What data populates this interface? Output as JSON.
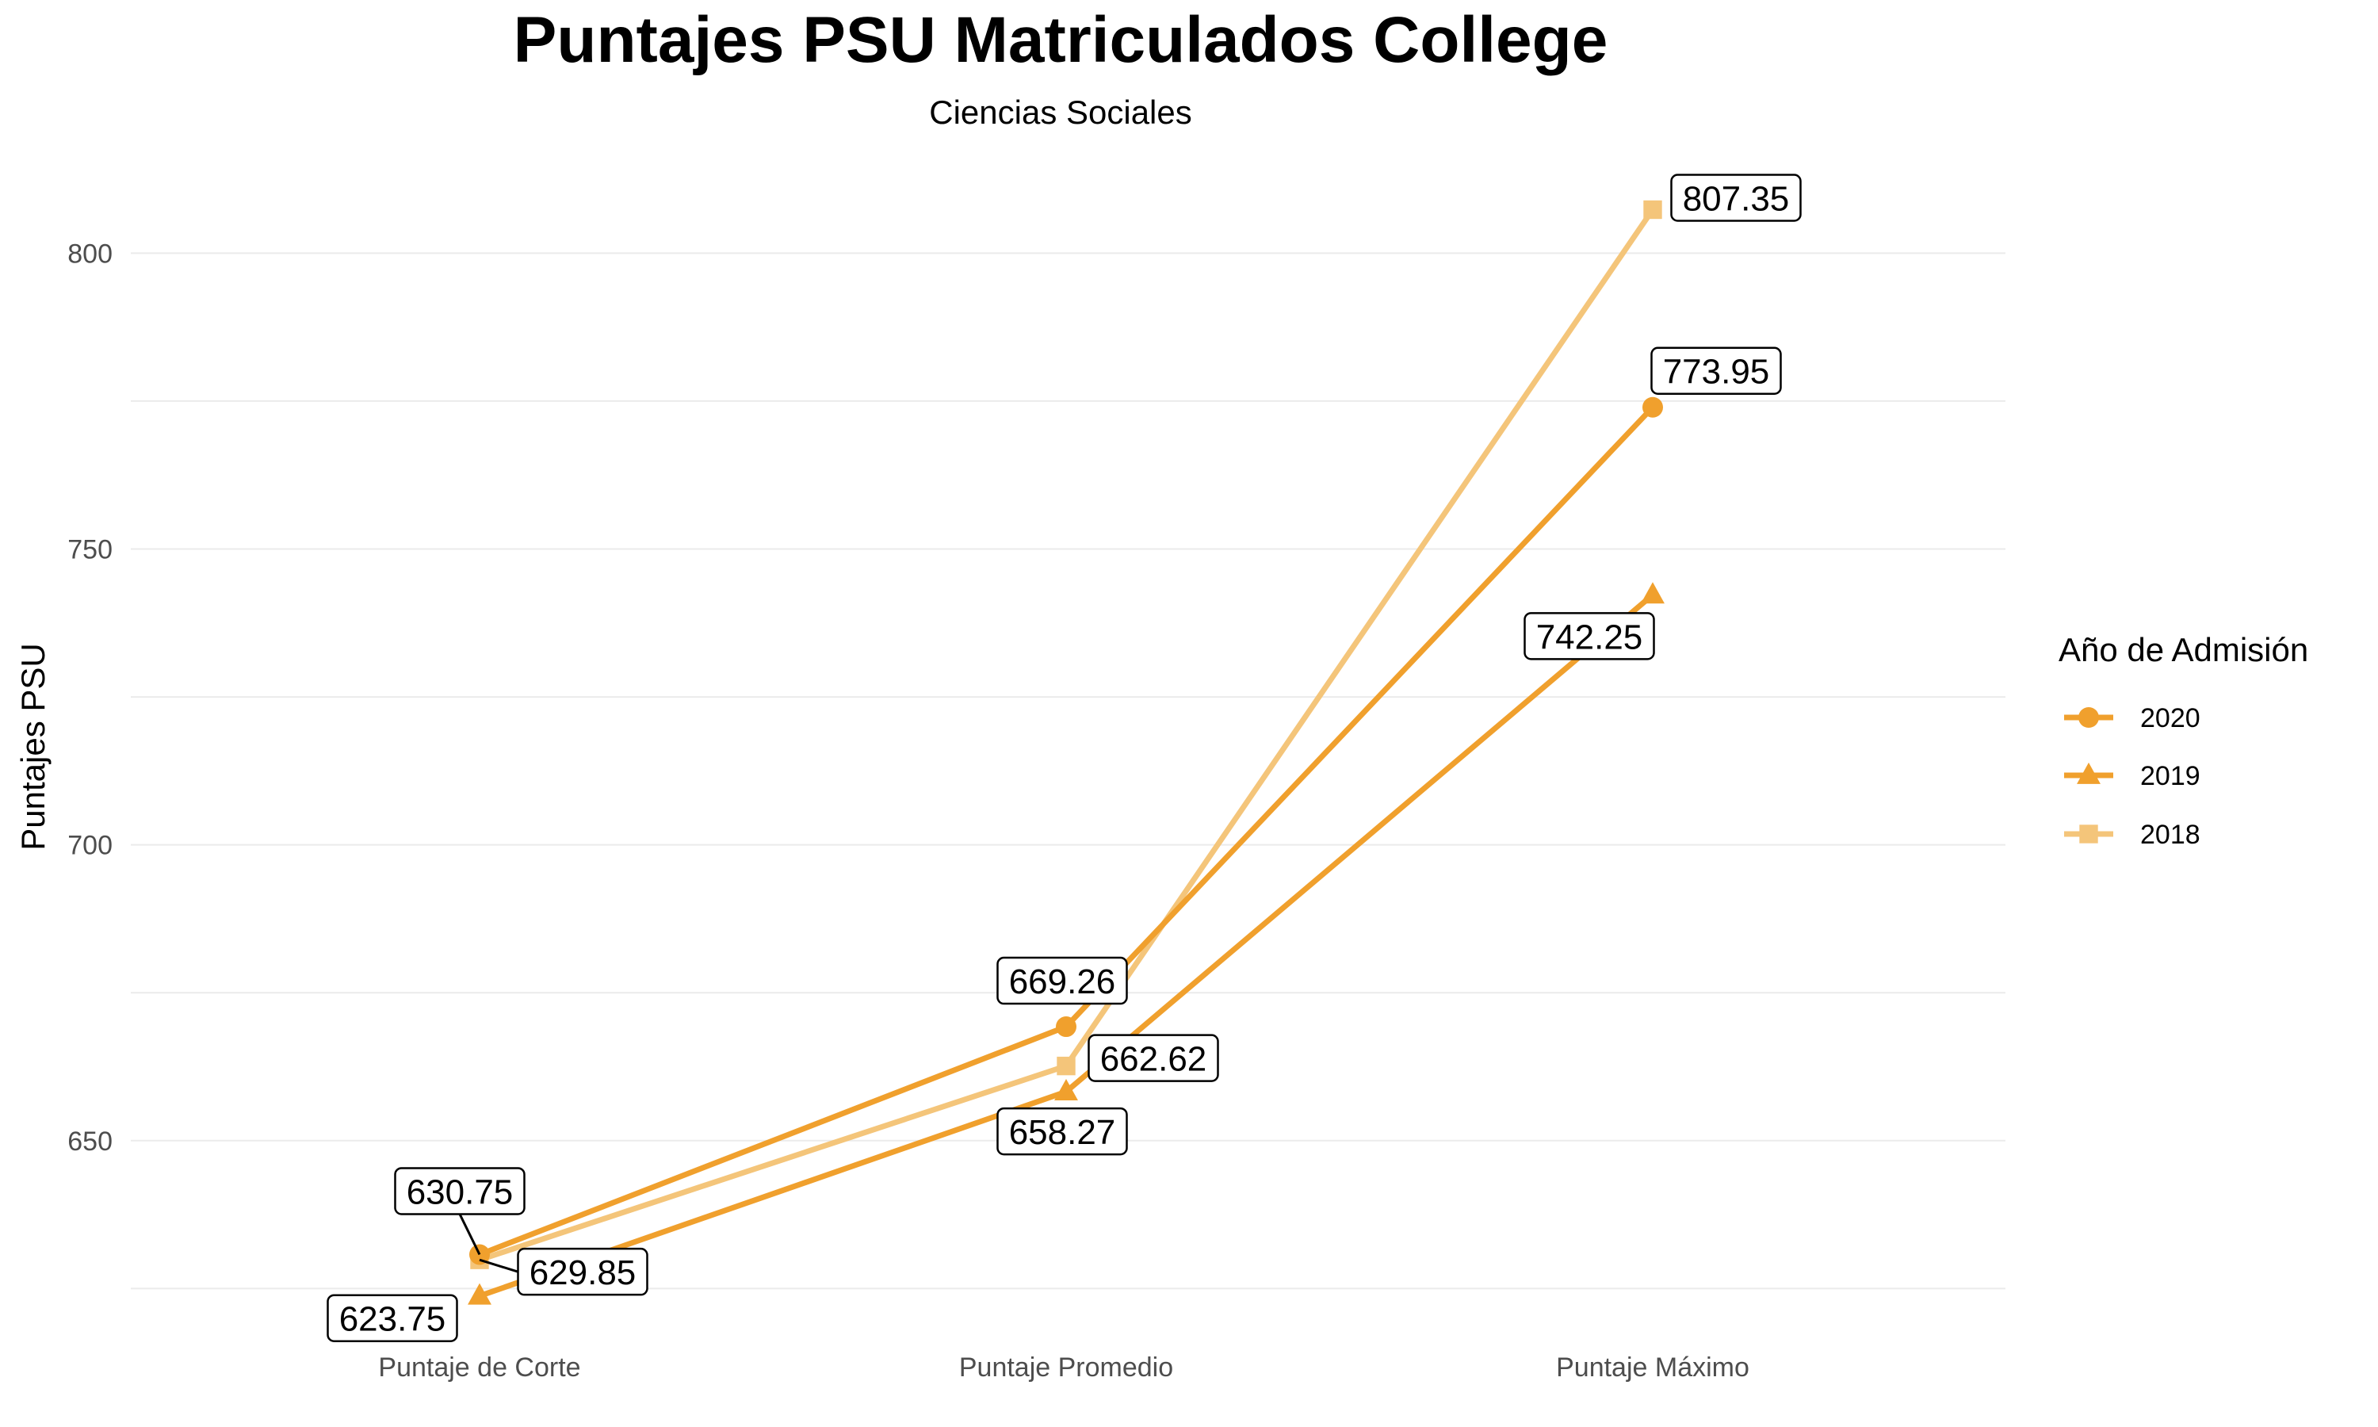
{
  "chart_data": {
    "type": "line",
    "title": "Puntajes PSU Matriculados College",
    "subtitle": "Ciencias Sociales",
    "xlabel": "",
    "ylabel": "Puntajes PSU",
    "categories": [
      "Puntaje de Corte",
      "Puntaje Promedio",
      "Puntaje Máximo"
    ],
    "ylim": [
      615,
      818
    ],
    "yticks": [
      650,
      700,
      750,
      800
    ],
    "grid": true,
    "legend": {
      "title": "Año de Admisión",
      "position": "right"
    },
    "series": [
      {
        "name": "2020",
        "color": "#F0A02D",
        "marker": "circle",
        "values": [
          630.75,
          669.26,
          773.95
        ],
        "labels": [
          "630.75",
          "669.26",
          "773.95"
        ]
      },
      {
        "name": "2019",
        "color": "#F0A02D",
        "marker": "triangle",
        "values": [
          623.75,
          658.27,
          742.25
        ],
        "labels": [
          "623.75",
          "658.27",
          "742.25"
        ]
      },
      {
        "name": "2018",
        "color": "#F4C57A",
        "marker": "square",
        "values": [
          629.85,
          662.62,
          807.35
        ],
        "labels": [
          "629.85",
          "662.62",
          "807.35"
        ]
      }
    ]
  }
}
